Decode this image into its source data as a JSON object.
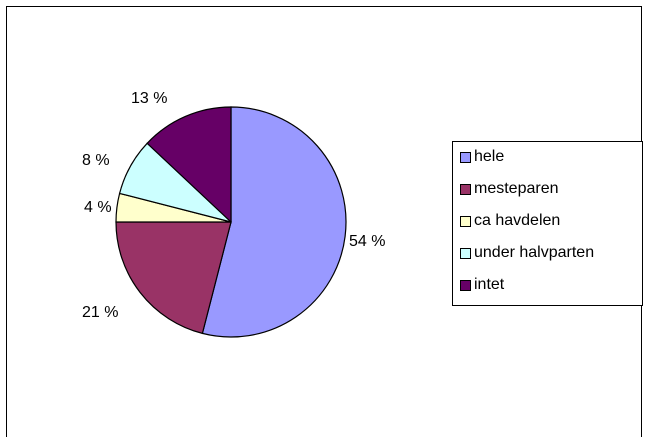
{
  "chart_data": {
    "type": "pie",
    "title": "",
    "categories": [
      "hele",
      "mesteparen",
      "ca havdelen",
      "under halvparten",
      "intet"
    ],
    "values": [
      54,
      21,
      4,
      8,
      13
    ],
    "labels": [
      "54 %",
      "21 %",
      "4 %",
      "8 %",
      "13 %"
    ],
    "colors": [
      "#9999ff",
      "#993366",
      "#ffffcc",
      "#ccffff",
      "#660066"
    ],
    "legend": {
      "position": "right",
      "entries": [
        "hele",
        "mesteparen",
        "ca havdelen",
        "under halvparten",
        "intet"
      ]
    }
  }
}
